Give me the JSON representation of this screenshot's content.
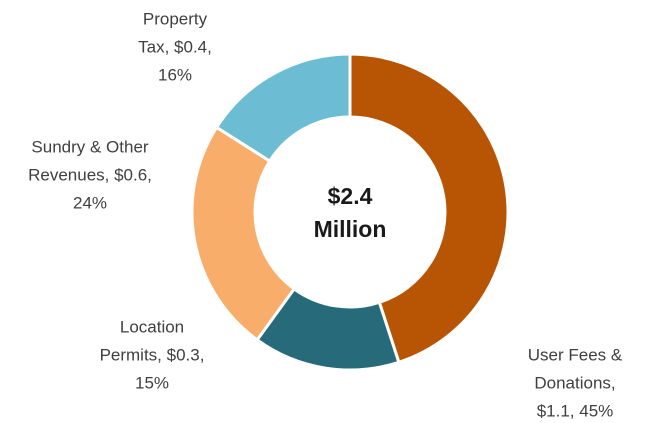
{
  "chart_data": {
    "type": "donut",
    "categories": [
      "User Fees & Donations",
      "Location Permits",
      "Sundry & Other Revenues",
      "Property Tax"
    ],
    "values": [
      45,
      15,
      24,
      16
    ],
    "colors": [
      "#b85505",
      "#276b7a",
      "#f9ad6b",
      "#6cbdd3"
    ],
    "label_lines": [
      [
        "User Fees &",
        "Donations,",
        "$1.1, 45%"
      ],
      [
        "Location",
        "Permits, $0.3,",
        "15%"
      ],
      [
        "Sundry & Other",
        "Revenues, $0.6,",
        "24%"
      ],
      [
        "Property",
        "Tax, $0.4,",
        "16%"
      ]
    ],
    "center_lines": [
      "$2.4",
      "Million"
    ]
  }
}
